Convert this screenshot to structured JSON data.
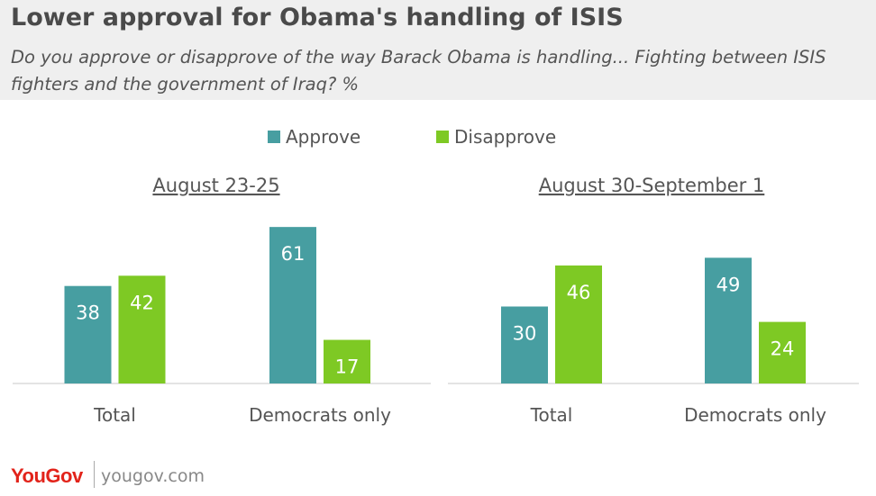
{
  "title": "Lower approval for Obama's handling of ISIS",
  "subtitle": "Do you approve or disapprove of the way Barack Obama is handling... Fighting between ISIS fighters and the government of Iraq? %",
  "colors": {
    "approve": "#479ea1",
    "disapprove": "#7ec924"
  },
  "footer": {
    "brand": "YouGov",
    "url": "yougov.com"
  },
  "chart_data": [
    {
      "type": "bar",
      "title": "August 23-25",
      "categories": [
        "Total",
        "Democrats only"
      ],
      "series": [
        {
          "name": "Approve",
          "values": [
            38,
            61
          ]
        },
        {
          "name": "Disapprove",
          "values": [
            42,
            17
          ]
        }
      ],
      "ylim": [
        0,
        64
      ],
      "grid": false,
      "legend": "top-center"
    },
    {
      "type": "bar",
      "title": "August 30-September 1",
      "categories": [
        "Total",
        "Democrats only"
      ],
      "series": [
        {
          "name": "Approve",
          "values": [
            30,
            49
          ]
        },
        {
          "name": "Disapprove",
          "values": [
            46,
            24
          ]
        }
      ],
      "ylim": [
        0,
        64
      ],
      "grid": false,
      "legend": "top-center"
    }
  ]
}
